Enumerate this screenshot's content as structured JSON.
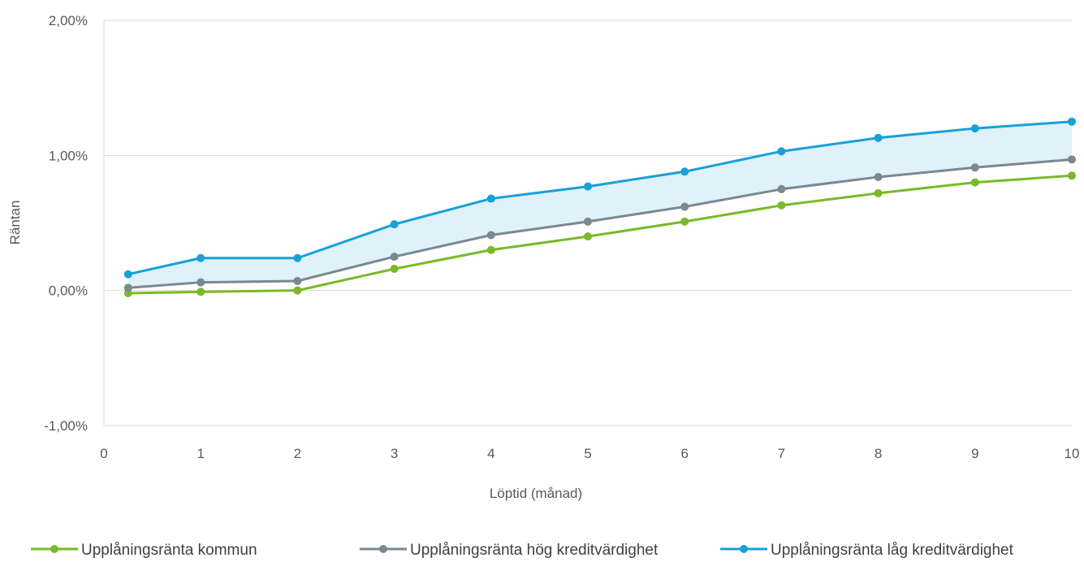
{
  "chart_data": {
    "type": "line",
    "title": "",
    "xlabel": "Löptid (månad)",
    "ylabel": "Räntan",
    "xlim": [
      0,
      10
    ],
    "ylim": [
      -1.0,
      2.0
    ],
    "x_ticks": [
      0,
      1,
      2,
      3,
      4,
      5,
      6,
      7,
      8,
      9,
      10
    ],
    "x_tick_labels": [
      "0",
      "1",
      "2",
      "3",
      "4",
      "5",
      "6",
      "7",
      "8",
      "9",
      "10"
    ],
    "y_ticks": [
      -1.0,
      0.0,
      1.0,
      2.0
    ],
    "y_tick_labels": [
      "-1,00%",
      "0,00%",
      "1,00%",
      "2,00%"
    ],
    "grid": "horizontal",
    "legend_position": "bottom",
    "band_fill_color": "#dff1f9",
    "band_between": [
      "Upplåningsränta hög kreditvärdighet",
      "Upplåningsränta låg kreditvärdighet"
    ],
    "x": [
      0.25,
      1,
      2,
      3,
      4,
      5,
      6,
      7,
      8,
      9,
      10
    ],
    "series": [
      {
        "name": "Upplåningsränta kommun",
        "color": "#7ab929",
        "values": [
          -0.02,
          -0.01,
          0.0,
          0.16,
          0.3,
          0.4,
          0.51,
          0.63,
          0.72,
          0.8,
          0.85
        ]
      },
      {
        "name": "Upplåningsränta hög kreditvärdighet",
        "color": "#7a8891",
        "values": [
          0.02,
          0.06,
          0.07,
          0.25,
          0.41,
          0.51,
          0.62,
          0.75,
          0.84,
          0.91,
          0.97
        ]
      },
      {
        "name": "Upplåningsränta låg kreditvärdighet",
        "color": "#18a0d8",
        "values": [
          0.12,
          0.24,
          0.24,
          0.49,
          0.68,
          0.77,
          0.88,
          1.03,
          1.13,
          1.2,
          1.25
        ]
      }
    ]
  }
}
